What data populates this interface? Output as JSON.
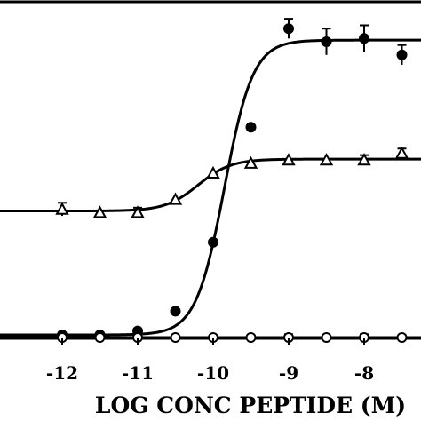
{
  "chart_data": {
    "type": "line",
    "title": "",
    "xlabel": "LOG CONC PEPTIDE (M)",
    "ylabel": "",
    "xlim": [
      -13.5,
      -7.2
    ],
    "ylim": [
      0,
      1
    ],
    "grid": false,
    "xticks": [
      -12,
      -11,
      -10,
      -9,
      -8
    ],
    "xtick_labels": [
      "-12",
      "-11",
      "-10",
      "-9",
      "-8"
    ],
    "series": [
      {
        "marker": "filled-circle",
        "points": [
          {
            "x": -12.0,
            "y": 0.008
          },
          {
            "x": -11.5,
            "y": 0.008
          },
          {
            "x": -11.0,
            "y": 0.02
          },
          {
            "x": -10.5,
            "y": 0.08
          },
          {
            "x": -10.0,
            "y": 0.29
          },
          {
            "x": -9.5,
            "y": 0.64
          },
          {
            "x": -9.0,
            "y": 0.94,
            "err": 0.03
          },
          {
            "x": -8.5,
            "y": 0.9,
            "err": 0.04
          },
          {
            "x": -8.0,
            "y": 0.91,
            "err": 0.04
          },
          {
            "x": -7.5,
            "y": 0.86,
            "err": 0.03
          }
        ],
        "fit": {
          "bottom": 0.008,
          "top": 0.905,
          "ec50": -9.85,
          "hill": 2.3
        }
      },
      {
        "marker": "open-triangle",
        "points": [
          {
            "x": -12.0,
            "y": 0.39,
            "err": 0.02
          },
          {
            "x": -11.5,
            "y": 0.38
          },
          {
            "x": -11.0,
            "y": 0.38,
            "err": 0.015
          },
          {
            "x": -10.5,
            "y": 0.42
          },
          {
            "x": -10.0,
            "y": 0.5
          },
          {
            "x": -9.5,
            "y": 0.53
          },
          {
            "x": -9.0,
            "y": 0.54
          },
          {
            "x": -8.5,
            "y": 0.54
          },
          {
            "x": -8.0,
            "y": 0.54,
            "err": 0.015
          },
          {
            "x": -7.5,
            "y": 0.56,
            "err": 0.015
          }
        ],
        "fit": {
          "bottom": 0.385,
          "top": 0.543,
          "ec50": -10.2,
          "hill": 2.0
        }
      },
      {
        "marker": "open-circle",
        "points": [
          {
            "x": -12.0,
            "y": 0.0
          },
          {
            "x": -11.5,
            "y": 0.0
          },
          {
            "x": -11.0,
            "y": 0.0
          },
          {
            "x": -10.5,
            "y": 0.0
          },
          {
            "x": -10.0,
            "y": 0.0
          },
          {
            "x": -9.5,
            "y": 0.0
          },
          {
            "x": -9.0,
            "y": 0.0,
            "err": 0.01
          },
          {
            "x": -8.5,
            "y": 0.0
          },
          {
            "x": -8.0,
            "y": 0.0,
            "err": 0.01
          },
          {
            "x": -7.5,
            "y": 0.0
          }
        ],
        "fit": {
          "bottom": 0.0,
          "top": 0.0,
          "ec50": -10,
          "hill": 1.0
        }
      }
    ]
  }
}
